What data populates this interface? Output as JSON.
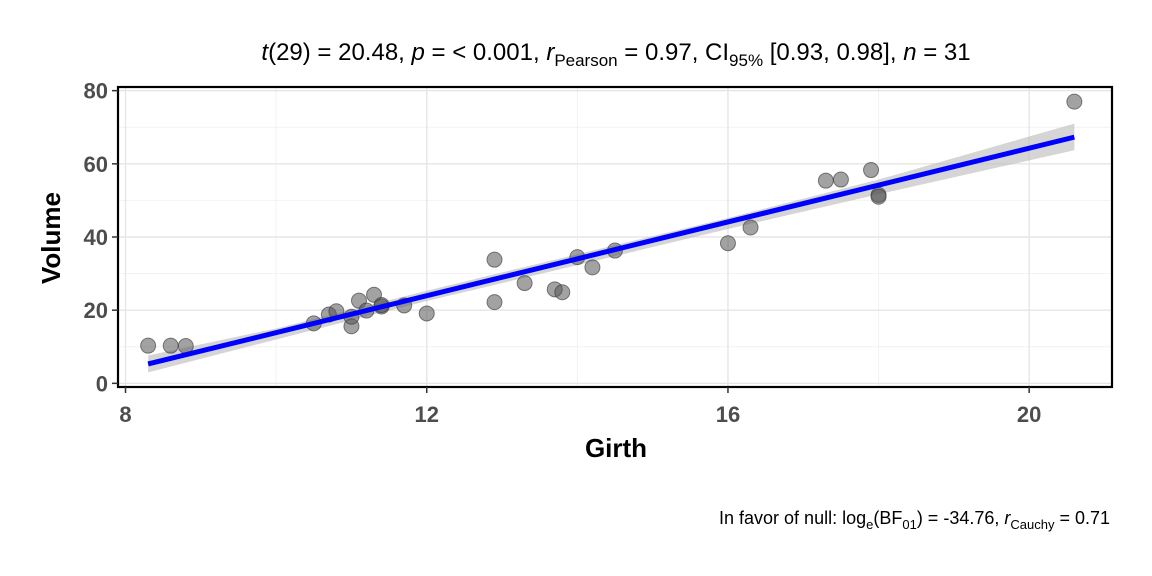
{
  "chart_data": {
    "type": "scatter",
    "title": {
      "t_sym": "t",
      "t_rest": "(29) = 20.48, ",
      "p_sym": "p",
      "p_rest": " = < 0.001, ",
      "r_sym": "r",
      "r_sub": "Pearson",
      "r_rest": " = 0.97, CI",
      "ci_sub": "95%",
      "ci_rest": " [0.93, 0.98], ",
      "n_sym": "n",
      "n_rest": " = 31"
    },
    "caption": {
      "prefix": "In favor of null: log",
      "log_sub": "e",
      "bf_open": "(BF",
      "bf_sub": "01",
      "bf_rest": ") = -34.76, ",
      "r_sym": "r",
      "r_sub": "Cauchy",
      "r_rest": " = 0.71"
    },
    "xlabel": "Girth",
    "ylabel": "Volume",
    "xlim": [
      7.9,
      21.1
    ],
    "ylim": [
      -1,
      81
    ],
    "x_ticks": [
      8,
      12,
      16,
      20
    ],
    "y_ticks": [
      0,
      20,
      40,
      60,
      80
    ],
    "x_tick_labels": [
      "8",
      "12",
      "16",
      "20"
    ],
    "y_tick_labels": [
      "0",
      "20",
      "40",
      "60",
      "80"
    ],
    "grid": true,
    "points": {
      "x": [
        8.3,
        8.6,
        8.8,
        10.5,
        10.7,
        10.8,
        11.0,
        11.0,
        11.1,
        11.2,
        11.3,
        11.4,
        11.4,
        11.7,
        12.0,
        12.9,
        12.9,
        13.3,
        13.7,
        13.8,
        14.0,
        14.2,
        14.5,
        16.0,
        16.3,
        17.3,
        17.5,
        17.9,
        18.0,
        18.0,
        20.6
      ],
      "y": [
        10.3,
        10.3,
        10.2,
        16.4,
        18.8,
        19.7,
        15.6,
        18.2,
        22.6,
        19.9,
        24.2,
        21.0,
        21.4,
        21.3,
        19.1,
        22.2,
        33.8,
        27.4,
        25.7,
        24.9,
        34.5,
        31.7,
        36.3,
        38.3,
        42.6,
        55.4,
        55.7,
        58.3,
        51.5,
        51.0,
        77.0
      ],
      "color": "#555555"
    },
    "fit_line": {
      "x": [
        8.3,
        20.6
      ],
      "y": [
        5.3,
        67.3
      ],
      "color": "#0000ff"
    },
    "confidence_band": {
      "x": [
        8.3,
        10,
        12,
        14,
        16,
        18,
        20.6
      ],
      "lower": [
        3.0,
        12.0,
        22.5,
        32.3,
        42.2,
        51.7,
        63.7
      ],
      "upper": [
        7.6,
        15.0,
        25.3,
        35.3,
        45.2,
        55.7,
        71.0
      ],
      "color": "#bfbfbf"
    }
  }
}
